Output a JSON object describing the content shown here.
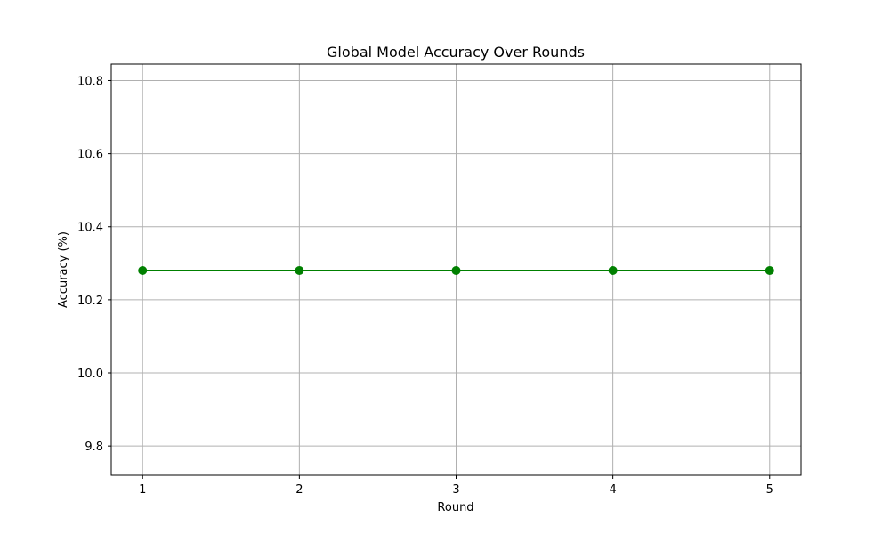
{
  "chart_data": {
    "type": "line",
    "title": "Global Model Accuracy Over Rounds",
    "xlabel": "Round",
    "ylabel": "Accuracy (%)",
    "x": [
      1,
      2,
      3,
      4,
      5
    ],
    "series": [
      {
        "values": [
          10.28,
          10.28,
          10.28,
          10.28,
          10.28
        ],
        "color": "#008000",
        "marker": "circle"
      }
    ],
    "xlim": [
      0.8,
      5.2
    ],
    "ylim": [
      9.72,
      10.845
    ],
    "xticks": [
      1,
      2,
      3,
      4,
      5
    ],
    "xtick_labels": [
      "1",
      "2",
      "3",
      "4",
      "5"
    ],
    "yticks": [
      9.8,
      10.0,
      10.2,
      10.4,
      10.6,
      10.8
    ],
    "ytick_labels": [
      "9.8",
      "10.0",
      "10.2",
      "10.4",
      "10.6",
      "10.8"
    ],
    "grid": true,
    "grid_color": "#b0b0b0",
    "legend": false
  }
}
